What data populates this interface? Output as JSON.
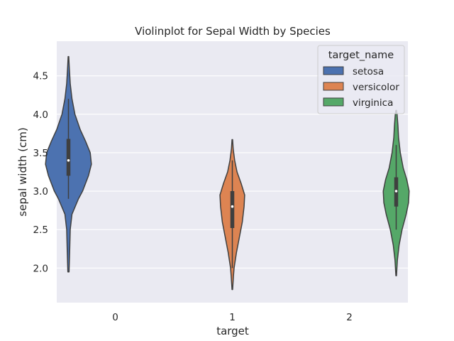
{
  "chart_data": {
    "type": "violin",
    "title": "Violinplot for Sepal Width by Species",
    "xlabel": "target",
    "ylabel": "sepal width (cm)",
    "x_categories": [
      "0",
      "1",
      "2"
    ],
    "ylim": [
      1.55,
      4.95
    ],
    "yticks": [
      2.0,
      2.5,
      3.0,
      3.5,
      4.0,
      4.5
    ],
    "ytick_labels": [
      "2.0",
      "2.5",
      "3.0",
      "3.5",
      "4.0",
      "4.5"
    ],
    "grid": true,
    "legend": {
      "title": "target_name",
      "placement": "top-right",
      "entries": [
        "setosa",
        "versicolor",
        "virginica"
      ]
    },
    "series": [
      {
        "name": "setosa",
        "category": "0",
        "color": "#4c72b0",
        "hue_offset": -0.4,
        "min": 1.95,
        "max": 4.75,
        "whisker_low": 2.9,
        "whisker_high": 4.2,
        "q1": 3.2,
        "median": 3.4,
        "q3": 3.68,
        "density": [
          [
            1.95,
            0.01
          ],
          [
            2.2,
            0.02
          ],
          [
            2.5,
            0.03
          ],
          [
            2.7,
            0.06
          ],
          [
            2.9,
            0.17
          ],
          [
            3.0,
            0.24
          ],
          [
            3.2,
            0.34
          ],
          [
            3.35,
            0.39
          ],
          [
            3.5,
            0.37
          ],
          [
            3.65,
            0.29
          ],
          [
            3.8,
            0.2
          ],
          [
            4.0,
            0.11
          ],
          [
            4.2,
            0.06
          ],
          [
            4.4,
            0.03
          ],
          [
            4.6,
            0.015
          ],
          [
            4.75,
            0.005
          ]
        ]
      },
      {
        "name": "versicolor",
        "category": "1",
        "color": "#dd8452",
        "hue_offset": 0.0,
        "min": 1.72,
        "max": 3.67,
        "whisker_low": 2.0,
        "whisker_high": 3.4,
        "q1": 2.52,
        "median": 2.8,
        "q3": 3.0,
        "density": [
          [
            1.72,
            0.005
          ],
          [
            1.9,
            0.02
          ],
          [
            2.0,
            0.03
          ],
          [
            2.2,
            0.07
          ],
          [
            2.4,
            0.12
          ],
          [
            2.6,
            0.17
          ],
          [
            2.8,
            0.2
          ],
          [
            2.95,
            0.21
          ],
          [
            3.1,
            0.15
          ],
          [
            3.25,
            0.08
          ],
          [
            3.4,
            0.04
          ],
          [
            3.55,
            0.015
          ],
          [
            3.67,
            0.005
          ]
        ]
      },
      {
        "name": "virginica",
        "category": "2",
        "color": "#55a868",
        "hue_offset": 0.4,
        "min": 1.9,
        "max": 4.05,
        "whisker_low": 2.5,
        "whisker_high": 3.6,
        "q1": 2.8,
        "median": 3.0,
        "q3": 3.18,
        "density": [
          [
            1.9,
            0.005
          ],
          [
            2.1,
            0.02
          ],
          [
            2.3,
            0.05
          ],
          [
            2.5,
            0.1
          ],
          [
            2.7,
            0.17
          ],
          [
            2.85,
            0.21
          ],
          [
            3.0,
            0.22
          ],
          [
            3.15,
            0.18
          ],
          [
            3.3,
            0.12
          ],
          [
            3.5,
            0.07
          ],
          [
            3.7,
            0.04
          ],
          [
            3.85,
            0.03
          ],
          [
            4.0,
            0.015
          ],
          [
            4.05,
            0.005
          ]
        ]
      }
    ]
  }
}
